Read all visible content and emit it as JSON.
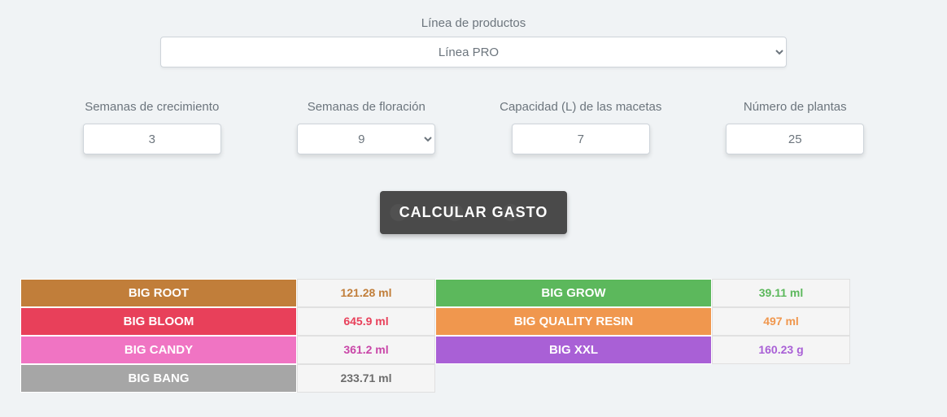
{
  "productLine": {
    "label": "Línea de productos",
    "selected": "Línea PRO"
  },
  "inputs": {
    "growthWeeks": {
      "label": "Semanas de crecimiento",
      "value": "3"
    },
    "flowerWeeks": {
      "label": "Semanas de floración",
      "value": "9"
    },
    "potCapacity": {
      "label": "Capacidad (L) de las macetas",
      "value": "7"
    },
    "plantCount": {
      "label": "Número de plantas",
      "value": "25"
    }
  },
  "button": {
    "label": "CALCULAR GASTO"
  },
  "results": [
    {
      "name": "BIG ROOT",
      "value": "121.28 ml",
      "bg": "#c17e3a",
      "fg": "#c17e3a"
    },
    {
      "name": "BIG GROW",
      "value": "39.11 ml",
      "bg": "#5cb85c",
      "fg": "#5cb85c"
    },
    {
      "name": "BIG BLOOM",
      "value": "645.9 ml",
      "bg": "#e8405a",
      "fg": "#e8405a"
    },
    {
      "name": "BIG QUALITY RESIN",
      "value": "497 ml",
      "bg": "#f0974e",
      "fg": "#f0974e"
    },
    {
      "name": "BIG CANDY",
      "value": "361.2 ml",
      "bg": "#f074c3",
      "fg": "#c946a8"
    },
    {
      "name": "BIG XXL",
      "value": "160.23 g",
      "bg": "#a960d6",
      "fg": "#a960d6"
    },
    {
      "name": "BIG BANG",
      "value": "233.71 ml",
      "bg": "#a6a6a6",
      "fg": "#6c6c6c"
    }
  ]
}
